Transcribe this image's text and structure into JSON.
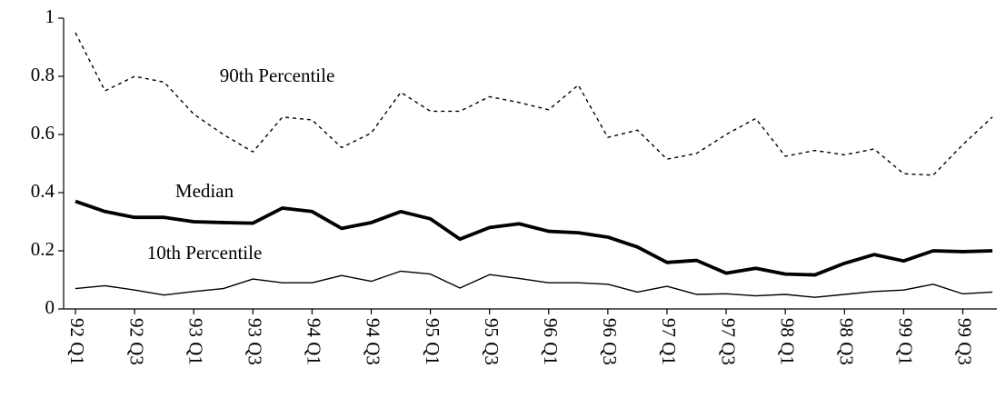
{
  "chart_data": {
    "type": "line",
    "categories": [
      "92 Q1",
      null,
      "92 Q3",
      null,
      "93 Q1",
      null,
      "93 Q3",
      null,
      "94 Q1",
      null,
      "94 Q3",
      null,
      "95 Q1",
      null,
      "95 Q3",
      null,
      "96 Q1",
      null,
      "96 Q3",
      null,
      "97 Q1",
      null,
      "97 Q3",
      null,
      "98 Q1",
      null,
      "98 Q3",
      null,
      "99 Q1",
      null,
      "99 Q3",
      null
    ],
    "series": [
      {
        "name": "90th Percentile",
        "color": "#000000",
        "values": [
          0.95,
          0.75,
          0.8,
          0.78,
          0.67,
          0.6,
          0.54,
          0.66,
          0.65,
          0.555,
          0.605,
          0.745,
          0.68,
          0.68,
          0.73,
          0.71,
          0.685,
          0.77,
          0.59,
          0.615,
          0.515,
          0.535,
          0.6,
          0.655,
          0.525,
          0.545,
          0.53,
          0.55,
          0.465,
          0.46,
          0.565,
          0.66
        ]
      },
      {
        "name": "Median",
        "color": "#000000",
        "values": [
          0.37,
          0.335,
          0.315,
          0.315,
          0.3,
          0.297,
          0.295,
          0.347,
          0.335,
          0.277,
          0.297,
          0.335,
          0.31,
          0.24,
          0.28,
          0.293,
          0.267,
          0.262,
          0.247,
          0.213,
          0.16,
          0.167,
          0.123,
          0.14,
          0.12,
          0.117,
          0.157,
          0.187,
          0.165,
          0.2,
          0.197,
          0.2
        ]
      },
      {
        "name": "10th Percentile",
        "color": "#000000",
        "values": [
          0.07,
          0.08,
          0.065,
          0.048,
          0.06,
          0.07,
          0.103,
          0.09,
          0.09,
          0.115,
          0.095,
          0.13,
          0.12,
          0.072,
          0.118,
          0.105,
          0.09,
          0.09,
          0.085,
          0.058,
          0.078,
          0.05,
          0.052,
          0.045,
          0.05,
          0.04,
          0.05,
          0.06,
          0.065,
          0.085,
          0.052,
          0.058
        ]
      }
    ],
    "ylim": [
      0,
      1
    ],
    "yticks": [
      0,
      0.2,
      0.4,
      0.6,
      0.8,
      1
    ],
    "grid": false
  }
}
